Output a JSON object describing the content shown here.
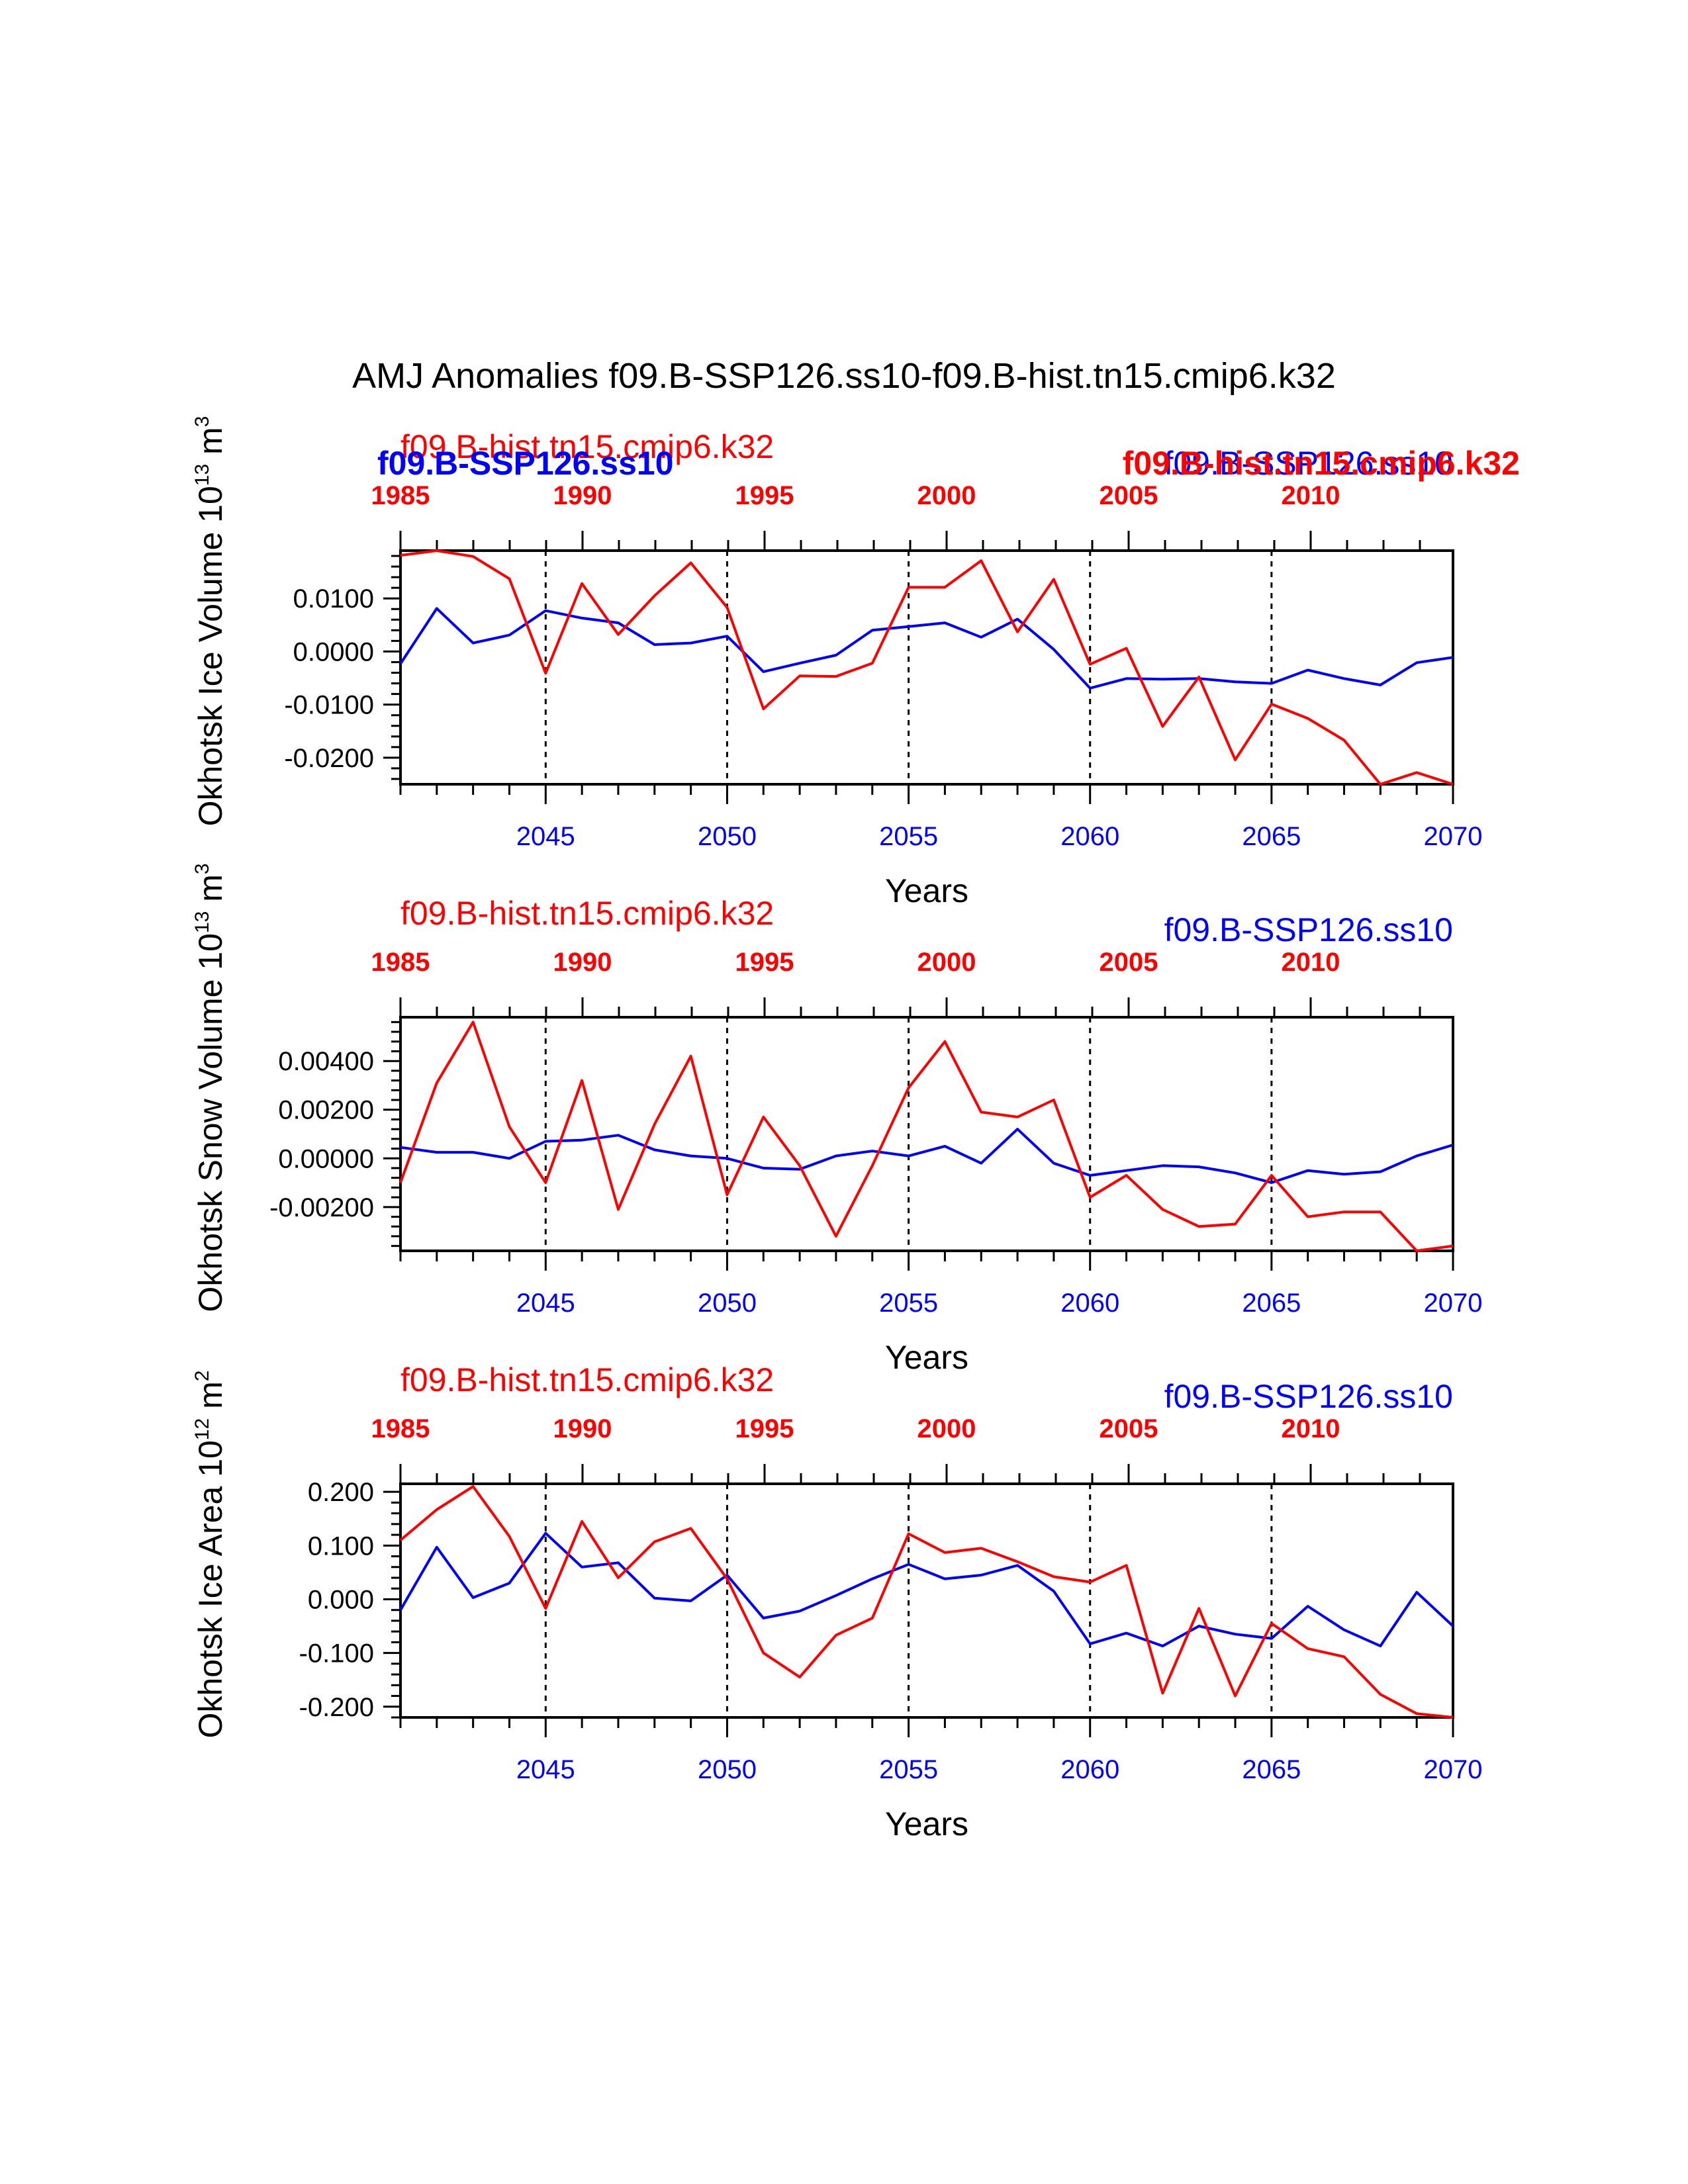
{
  "title": "AMJ Anomalies f09.B-SSP126.ss10-f09.B-hist.tn15.cmip6.k32",
  "colors": {
    "ssp": "#0000ff",
    "hist": "#ff0000",
    "axis": "#000000"
  },
  "chart_data": [
    {
      "type": "line",
      "ylabel": "Okhotsk Ice Volume 10^13 m^3",
      "xlabel": "Years",
      "ylim": [
        -0.025,
        0.019
      ],
      "yticks": [
        0.01,
        0.0,
        -0.01,
        -0.02
      ],
      "ytick_labels": [
        "0.0100",
        "0.0000",
        "-0.0100",
        "-0.0200"
      ],
      "bottom_axis": {
        "range": [
          2041,
          2070
        ],
        "ticks": [
          2045,
          2050,
          2055,
          2060,
          2065,
          2070
        ],
        "labels": [
          "2045",
          "2050",
          "2055",
          "2060",
          "2065",
          "2070"
        ]
      },
      "top_axis": {
        "labels": [
          "1985",
          "1990",
          "1995",
          "2000",
          "2005",
          "2010"
        ]
      },
      "legend_left": {
        "text": "f09.B-hist.tn15.cmip6.k32",
        "overlay": "f09.B-SSP126.ss10"
      },
      "legend_right": {
        "text": "f09.B-SSP126.ss10",
        "overlay": "f09.B-hist.tn15.cmip6.k32"
      },
      "x": [
        2041,
        2042,
        2043,
        2044,
        2045,
        2046,
        2047,
        2048,
        2049,
        2050,
        2051,
        2052,
        2053,
        2054,
        2055,
        2056,
        2057,
        2058,
        2059,
        2060,
        2061,
        2062,
        2063,
        2064,
        2065,
        2066,
        2067,
        2068,
        2069,
        2070
      ],
      "series": [
        {
          "name": "f09.B-SSP126.ss10",
          "color": "#0000ff",
          "values": [
            -0.0023,
            0.0081,
            0.0016,
            0.0031,
            0.0077,
            0.0063,
            0.0054,
            0.0013,
            0.0016,
            0.0029,
            -0.0038,
            -0.0022,
            -0.0007,
            0.004,
            0.0047,
            0.0054,
            0.0027,
            0.0061,
            0.0004,
            -0.0069,
            -0.0051,
            -0.0052,
            -0.0051,
            -0.0057,
            -0.006,
            -0.0035,
            -0.0051,
            -0.0063,
            -0.0021,
            -0.0011
          ]
        },
        {
          "name": "f09.B-hist.tn15.cmip6.k32",
          "color": "#ff0000",
          "values": [
            0.0181,
            0.019,
            0.0179,
            0.0137,
            -0.0041,
            0.0128,
            0.0032,
            0.0105,
            0.0167,
            0.0083,
            -0.0108,
            -0.0046,
            -0.0047,
            -0.0022,
            0.0121,
            0.0121,
            0.0171,
            0.0037,
            0.0136,
            -0.0024,
            0.0006,
            -0.0141,
            -0.0048,
            -0.0204,
            -0.0099,
            -0.0126,
            -0.0167,
            -0.0253,
            -0.0228,
            -0.0253
          ]
        }
      ]
    },
    {
      "type": "line",
      "ylabel": "Okhotsk Snow Volume 10^13 m^3",
      "xlabel": "Years",
      "ylim": [
        -0.0038,
        0.0058
      ],
      "yticks": [
        0.004,
        0.002,
        0.0,
        -0.002
      ],
      "ytick_labels": [
        "0.00400",
        "0.00200",
        "0.00000",
        "-0.00200"
      ],
      "bottom_axis": {
        "range": [
          2041,
          2070
        ],
        "ticks": [
          2045,
          2050,
          2055,
          2060,
          2065,
          2070
        ],
        "labels": [
          "2045",
          "2050",
          "2055",
          "2060",
          "2065",
          "2070"
        ]
      },
      "top_axis": {
        "labels": [
          "1985",
          "1990",
          "1995",
          "2000",
          "2005",
          "2010"
        ]
      },
      "legend_left": {
        "text": "f09.B-hist.tn15.cmip6.k32"
      },
      "legend_right": {
        "text": "f09.B-SSP126.ss10"
      },
      "x": [
        2041,
        2042,
        2043,
        2044,
        2045,
        2046,
        2047,
        2048,
        2049,
        2050,
        2051,
        2052,
        2053,
        2054,
        2055,
        2056,
        2057,
        2058,
        2059,
        2060,
        2061,
        2062,
        2063,
        2064,
        2065,
        2066,
        2067,
        2068,
        2069,
        2070
      ],
      "series": [
        {
          "name": "f09.B-SSP126.ss10",
          "color": "#0000ff",
          "values": [
            0.00045,
            0.00025,
            0.00025,
            0.0,
            0.0007,
            0.00075,
            0.00095,
            0.00035,
            0.0001,
            0.0,
            -0.0004,
            -0.00045,
            0.0001,
            0.0003,
            0.0001,
            0.0005,
            -0.0002,
            0.0012,
            -0.0002,
            -0.0007,
            -0.0005,
            -0.0003,
            -0.00035,
            -0.0006,
            -0.001,
            -0.0005,
            -0.00065,
            -0.00055,
            0.0001,
            0.00055
          ]
        },
        {
          "name": "f09.B-hist.tn15.cmip6.k32",
          "color": "#ff0000",
          "values": [
            -0.001,
            0.0031,
            0.0056,
            0.0013,
            -0.001,
            0.0032,
            -0.0021,
            0.0014,
            0.0042,
            -0.0015,
            0.0017,
            -0.0003,
            -0.0032,
            -0.0003,
            0.0029,
            0.0048,
            0.0019,
            0.0017,
            0.0024,
            -0.0016,
            -0.0007,
            -0.0021,
            -0.0028,
            -0.0027,
            -0.0007,
            -0.0024,
            -0.0022,
            -0.0022,
            -0.0038,
            -0.0036
          ]
        }
      ]
    },
    {
      "type": "line",
      "ylabel": "Okhotsk Ice Area 10^12 m^2",
      "xlabel": "Years",
      "ylim": [
        -0.22,
        0.215
      ],
      "yticks": [
        0.2,
        0.1,
        0.0,
        -0.1,
        -0.2
      ],
      "ytick_labels": [
        "0.200",
        "0.100",
        "0.000",
        "-0.100",
        "-0.200"
      ],
      "bottom_axis": {
        "range": [
          2041,
          2070
        ],
        "ticks": [
          2045,
          2050,
          2055,
          2060,
          2065,
          2070
        ],
        "labels": [
          "2045",
          "2050",
          "2055",
          "2060",
          "2065",
          "2070"
        ]
      },
      "top_axis": {
        "labels": [
          "1985",
          "1990",
          "1995",
          "2000",
          "2005",
          "2010"
        ]
      },
      "legend_left": {
        "text": "f09.B-hist.tn15.cmip6.k32"
      },
      "legend_right": {
        "text": "f09.B-SSP126.ss10"
      },
      "x": [
        2041,
        2042,
        2043,
        2044,
        2045,
        2046,
        2047,
        2048,
        2049,
        2050,
        2051,
        2052,
        2053,
        2054,
        2055,
        2056,
        2057,
        2058,
        2059,
        2060,
        2061,
        2062,
        2063,
        2064,
        2065,
        2066,
        2067,
        2068,
        2069,
        2070
      ],
      "series": [
        {
          "name": "f09.B-SSP126.ss10",
          "color": "#0000ff",
          "values": [
            -0.02,
            0.097,
            0.003,
            0.03,
            0.123,
            0.06,
            0.068,
            0.002,
            -0.003,
            0.045,
            -0.035,
            -0.022,
            0.007,
            0.038,
            0.065,
            0.038,
            0.045,
            0.063,
            0.015,
            -0.083,
            -0.063,
            -0.087,
            -0.05,
            -0.065,
            -0.073,
            -0.013,
            -0.057,
            -0.087,
            0.013,
            -0.05
          ]
        },
        {
          "name": "f09.B-hist.tn15.cmip6.k32",
          "color": "#ff0000",
          "values": [
            0.11,
            0.167,
            0.21,
            0.117,
            -0.017,
            0.145,
            0.04,
            0.107,
            0.132,
            0.038,
            -0.1,
            -0.145,
            -0.067,
            -0.035,
            0.122,
            0.087,
            0.095,
            0.07,
            0.042,
            0.032,
            0.063,
            -0.175,
            -0.017,
            -0.18,
            -0.045,
            -0.092,
            -0.107,
            -0.177,
            -0.213,
            -0.22
          ]
        }
      ]
    }
  ]
}
